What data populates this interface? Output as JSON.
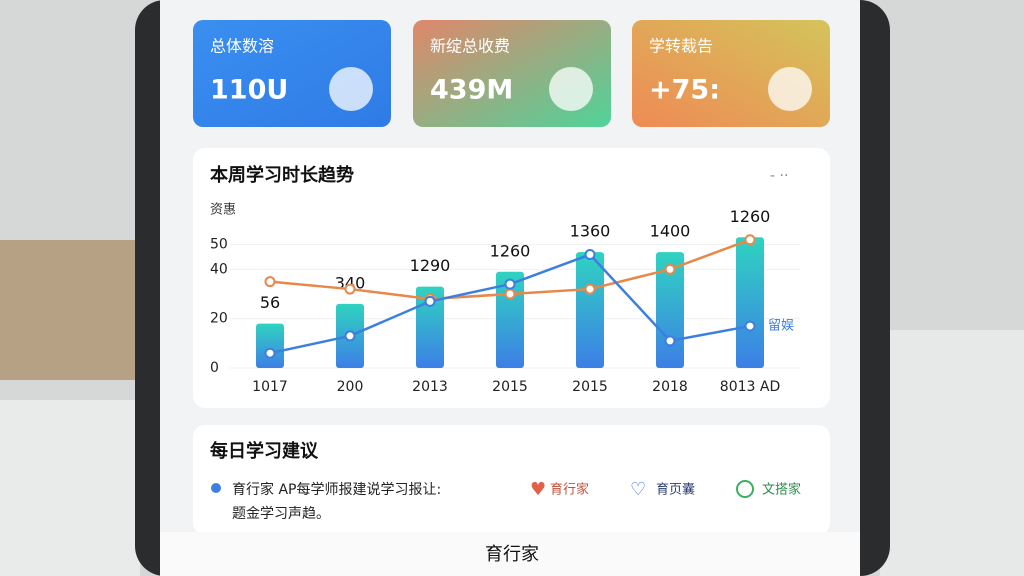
{
  "stat_cards": [
    {
      "title": "总体数溶",
      "value": "110U"
    },
    {
      "title": "新绽总收费",
      "value": "439M"
    },
    {
      "title": "学转裁告",
      "value": "+75:"
    }
  ],
  "chart_data": {
    "type": "bar",
    "title": "本周学习时长趋势",
    "y_label": "资惠",
    "categories": [
      "1017",
      "200",
      "2013",
      "2015",
      "2015",
      "2018",
      "8013 AD"
    ],
    "values": [
      18,
      26,
      33,
      39,
      47,
      47,
      53
    ],
    "color": "#2fb0d8",
    "bar_labels": [
      "56",
      "340",
      "1290",
      "1260",
      "1360",
      "1400",
      "1260"
    ],
    "series": [
      {
        "color": "#e8874a",
        "values": [
          35,
          32,
          28,
          30,
          32,
          40,
          52
        ]
      },
      {
        "name": "留娱",
        "color": "#3d7fe0",
        "values": [
          6,
          13,
          27,
          34,
          46,
          11,
          17
        ]
      }
    ],
    "ylim": [
      0,
      60
    ],
    "yticks": [
      0,
      20,
      40,
      50
    ],
    "grid": true
  },
  "advice": {
    "title": "每日学习建议",
    "lines": [
      "育行家 AP每学师报建说学习报让:",
      "题金学习声趋。"
    ],
    "tags": [
      "育行家",
      "育页囊",
      "文搭家"
    ]
  },
  "bottom_bar": {
    "title": "育行家"
  }
}
